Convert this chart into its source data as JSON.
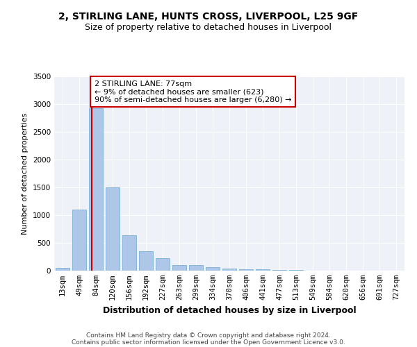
{
  "title1": "2, STIRLING LANE, HUNTS CROSS, LIVERPOOL, L25 9GF",
  "title2": "Size of property relative to detached houses in Liverpool",
  "xlabel": "Distribution of detached houses by size in Liverpool",
  "ylabel": "Number of detached properties",
  "categories": [
    "13sqm",
    "49sqm",
    "84sqm",
    "120sqm",
    "156sqm",
    "192sqm",
    "227sqm",
    "263sqm",
    "299sqm",
    "334sqm",
    "370sqm",
    "406sqm",
    "441sqm",
    "477sqm",
    "513sqm",
    "549sqm",
    "584sqm",
    "620sqm",
    "656sqm",
    "691sqm",
    "727sqm"
  ],
  "values": [
    50,
    1100,
    2920,
    1500,
    640,
    345,
    225,
    105,
    95,
    60,
    35,
    30,
    20,
    15,
    10,
    5,
    5,
    3,
    2,
    2,
    2
  ],
  "bar_color": "#aec6e8",
  "bar_edge_color": "#7aafd4",
  "highlight_line_color": "#cc0000",
  "annotation_text": "2 STIRLING LANE: 77sqm\n← 9% of detached houses are smaller (623)\n90% of semi-detached houses are larger (6,280) →",
  "annotation_box_edge_color": "#cc0000",
  "ylim": [
    0,
    3500
  ],
  "yticks": [
    0,
    500,
    1000,
    1500,
    2000,
    2500,
    3000,
    3500
  ],
  "bg_color": "#eef2f8",
  "footer_line1": "Contains HM Land Registry data © Crown copyright and database right 2024.",
  "footer_line2": "Contains public sector information licensed under the Open Government Licence v3.0.",
  "title1_fontsize": 10,
  "title2_fontsize": 9,
  "xlabel_fontsize": 9,
  "ylabel_fontsize": 8,
  "tick_fontsize": 7.5,
  "annotation_fontsize": 8,
  "footer_fontsize": 6.5,
  "red_line_x": 1.75
}
